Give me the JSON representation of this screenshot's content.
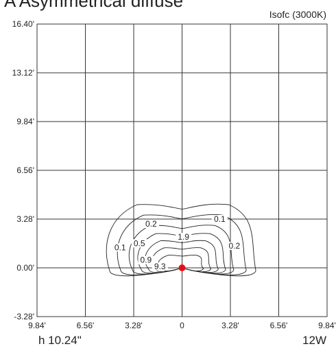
{
  "header": {
    "title": "A   Asymmetrical diffuse",
    "corner_label": "Isofc (3000K)"
  },
  "footer": {
    "height_label": "h 10.24\"",
    "power_label": "12W"
  },
  "chart_data": {
    "type": "contour",
    "title": "",
    "xlabel": "",
    "ylabel": "",
    "xlim": [
      -9.84,
      9.84
    ],
    "ylim": [
      -3.28,
      16.4
    ],
    "x_ticks": [
      -9.84,
      -6.56,
      -3.28,
      0,
      3.28,
      6.56,
      9.84
    ],
    "x_tick_labels": [
      "9.84'",
      "6.56'",
      "3.28'",
      "0",
      "3.28'",
      "6.56'",
      "9.84'"
    ],
    "y_ticks": [
      16.4,
      13.12,
      9.84,
      6.56,
      3.28,
      0.0,
      -3.28
    ],
    "y_tick_labels": [
      "16.40'",
      "13.12'",
      "9.84'",
      "6.56'",
      "3.28'",
      "0.00'",
      "-3.28'"
    ],
    "grid": true,
    "source_point": {
      "x": 0,
      "y": 0,
      "color": "#e0101a"
    },
    "contour_levels": [
      0.1,
      0.2,
      0.5,
      0.9,
      1.9,
      9.3
    ],
    "contour_labels": [
      {
        "text": "0.1",
        "x": 2.55,
        "y": 3.28
      },
      {
        "text": "0.2",
        "x": -2.1,
        "y": 2.95
      },
      {
        "text": "1.9",
        "x": 0.1,
        "y": 2.07
      },
      {
        "text": "0.2",
        "x": 3.55,
        "y": 1.48
      },
      {
        "text": "0.1",
        "x": -4.2,
        "y": 1.37
      },
      {
        "text": "0.5",
        "x": -2.9,
        "y": 1.65
      },
      {
        "text": "0.9",
        "x": -2.45,
        "y": 0.52
      },
      {
        "text": "9.3",
        "x": -1.5,
        "y": 0.09
      }
    ]
  }
}
